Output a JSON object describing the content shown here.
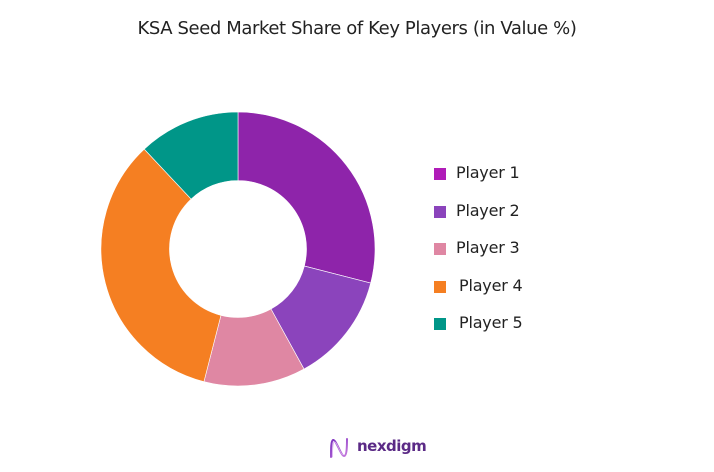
{
  "chart_data": {
    "type": "pie",
    "subtype": "donut",
    "title": "KSA Seed Market Share of Key Players (in Value %)",
    "categories": [
      "Player 1",
      "Player 2",
      "Player 3",
      "Player 4",
      "Player 5"
    ],
    "values": [
      29,
      13,
      12,
      34,
      12
    ],
    "unit": "%",
    "colors": [
      "#8e24aa",
      "#8b44bc",
      "#df87a3",
      "#f57f22",
      "#009688"
    ],
    "legend_colors": [
      "#b01cb8",
      "#8b44bc",
      "#df87a3",
      "#f57f22",
      "#009688"
    ],
    "legend_position": "right",
    "start_angle_deg": 0,
    "direction": "clockwise",
    "inner_radius_ratio": 0.5
  },
  "title": "KSA Seed Market Share of Key Players (in Value %)",
  "legend": {
    "items": [
      {
        "label": "Player 1"
      },
      {
        "label": "Player 2"
      },
      {
        "label": "Player 3"
      },
      {
        "label": "Player 4"
      },
      {
        "label": "Player 5"
      }
    ]
  },
  "footer": {
    "brand": "nexdigm",
    "brand_color": "#5b2a86",
    "icon": "nexdigm-wave-n-logo"
  }
}
